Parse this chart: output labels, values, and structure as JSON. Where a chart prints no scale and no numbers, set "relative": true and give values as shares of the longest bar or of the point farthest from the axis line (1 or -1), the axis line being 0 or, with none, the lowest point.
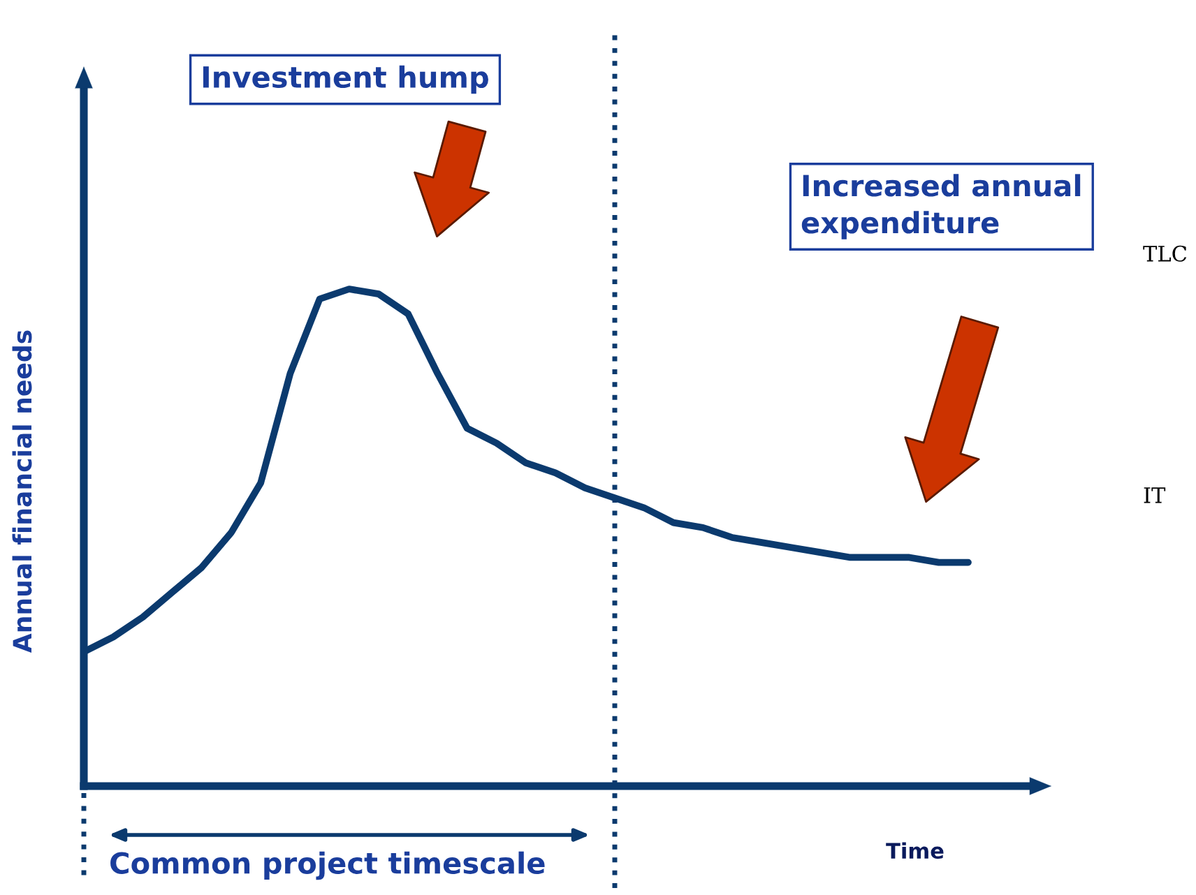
{
  "chart_data": {
    "type": "line",
    "relative": true,
    "ylabel": "Annual financial needs",
    "xlabel": "Time",
    "categories": [
      null,
      null,
      null,
      null,
      null,
      null,
      null,
      null,
      null,
      null,
      null,
      null,
      null,
      null,
      null,
      null,
      null,
      null,
      null,
      null,
      null,
      null,
      null,
      null,
      null,
      null,
      null,
      null,
      null,
      null,
      null
    ],
    "series": [
      {
        "color": "#0b3a6e",
        "values": [
          0.27,
          0.3,
          0.34,
          0.39,
          0.44,
          0.51,
          0.61,
          0.83,
          0.98,
          1.0,
          0.99,
          0.95,
          0.83,
          0.72,
          0.69,
          0.65,
          0.63,
          0.6,
          0.58,
          0.56,
          0.53,
          0.52,
          0.5,
          0.49,
          0.48,
          0.47,
          0.46,
          0.46,
          0.46,
          0.45,
          0.45
        ]
      }
    ],
    "annotations": [
      "Investment hump",
      "Increased annual\nexpenditure",
      "Common project timescale",
      "TLC",
      "IT"
    ],
    "marker": "none",
    "line_style": "solid"
  }
}
